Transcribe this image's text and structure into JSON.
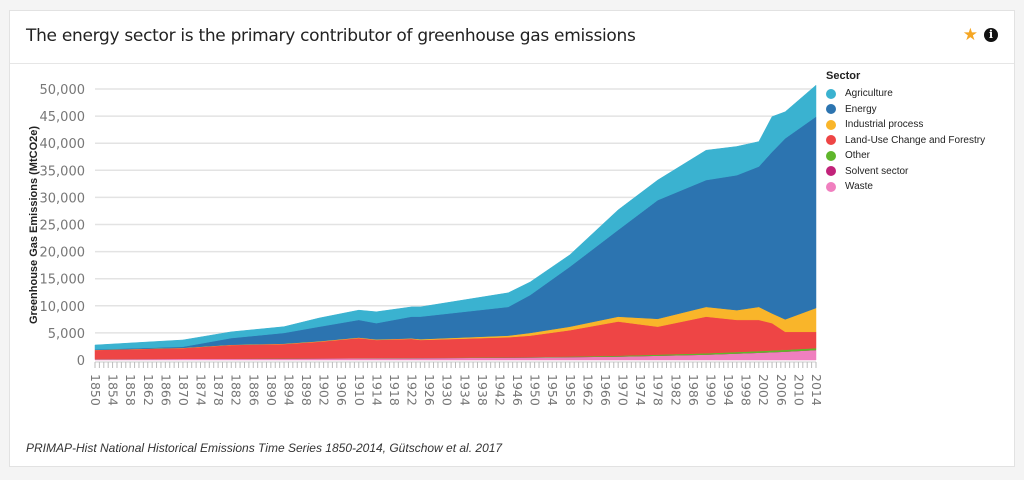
{
  "header": {
    "title": "The energy sector is the primary contributor of greenhouse gas emissions",
    "star_icon": "star-icon",
    "info_icon": "info-icon"
  },
  "source": "PRIMAP-Hist National Historical Emissions Time Series 1850-2014, Gütschow et al. 2017",
  "chart_data": {
    "type": "area",
    "stacked": true,
    "ylabel": "Greenhouse Gas Emissions (MtCO2e)",
    "xlabel": "",
    "ylim": [
      0,
      50000
    ],
    "xlim": [
      1850,
      2014
    ],
    "yticks": [
      "0",
      "5,000",
      "10,000",
      "15,000",
      "20,000",
      "25,000",
      "30,000",
      "35,000",
      "40,000",
      "45,000",
      "50,000"
    ],
    "legend_title": "Sector",
    "legend_position": "right",
    "grid": true,
    "x": [
      1850,
      1870,
      1881,
      1893,
      1901,
      1910,
      1914,
      1922,
      1924,
      1944,
      1949,
      1958,
      1969,
      1978,
      1989,
      1996,
      2001,
      2004,
      2007,
      2014
    ],
    "series": [
      {
        "name": "Waste",
        "color": "#f07fbf",
        "values": [
          200,
          230,
          250,
          280,
          300,
          330,
          340,
          360,
          370,
          450,
          480,
          550,
          650,
          800,
          1000,
          1200,
          1350,
          1450,
          1550,
          1850
        ]
      },
      {
        "name": "Solvent sector",
        "color": "#c2237a",
        "values": [
          0,
          0,
          0,
          0,
          0,
          0,
          0,
          0,
          0,
          0,
          0,
          0,
          0,
          0,
          0,
          0,
          0,
          0,
          0,
          0
        ]
      },
      {
        "name": "Other",
        "color": "#5fb62b",
        "values": [
          0,
          0,
          0,
          10,
          20,
          30,
          30,
          40,
          40,
          60,
          70,
          100,
          150,
          200,
          250,
          280,
          300,
          320,
          330,
          350
        ]
      },
      {
        "name": "Land-Use Change and Forestry",
        "color": "#ee4545",
        "values": [
          1650,
          1970,
          2520,
          2660,
          3060,
          3690,
          3330,
          3500,
          3290,
          3690,
          3950,
          4850,
          6300,
          5150,
          6750,
          5920,
          5750,
          5030,
          3320,
          3000
        ]
      },
      {
        "name": "Industrial process",
        "color": "#f9b52a",
        "values": [
          20,
          50,
          50,
          70,
          90,
          100,
          100,
          100,
          150,
          300,
          500,
          650,
          900,
          1450,
          1800,
          1800,
          2400,
          1800,
          2300,
          4400
        ]
      },
      {
        "name": "Energy",
        "color": "#2c74b0",
        "values": [
          80,
          200,
          1230,
          1980,
          2680,
          3250,
          3000,
          4000,
          4150,
          5300,
          7000,
          11050,
          16000,
          21900,
          23400,
          24900,
          25900,
          29800,
          33400,
          35300
        ]
      },
      {
        "name": "Agriculture",
        "color": "#3ab2d0",
        "values": [
          820,
          1250,
          1150,
          1150,
          1600,
          1800,
          2100,
          1800,
          1800,
          2600,
          2400,
          2200,
          3700,
          3700,
          5500,
          5300,
          4600,
          6500,
          4900,
          5800
        ]
      }
    ]
  }
}
